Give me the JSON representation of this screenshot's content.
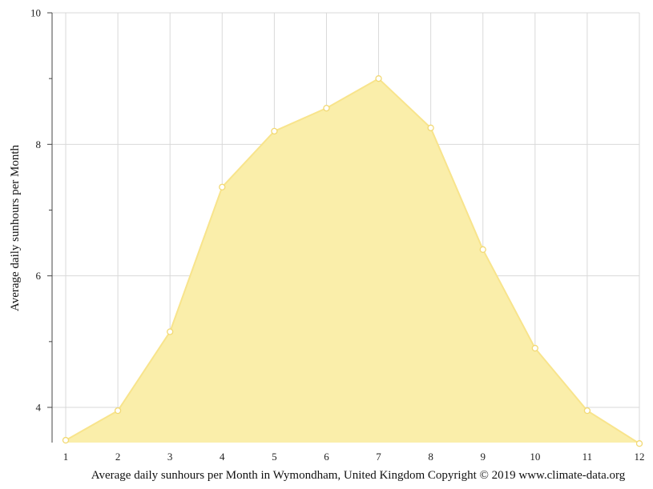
{
  "chart_data": {
    "type": "area",
    "x": [
      1,
      2,
      3,
      4,
      5,
      6,
      7,
      8,
      9,
      10,
      11,
      12
    ],
    "series": [
      {
        "values": [
          3.5,
          3.95,
          5.15,
          7.35,
          8.2,
          8.55,
          9.0,
          8.25,
          6.4,
          4.9,
          3.95,
          3.45
        ]
      }
    ],
    "x_tick_labels": [
      "1",
      "2",
      "3",
      "4",
      "5",
      "6",
      "7",
      "8",
      "9",
      "10",
      "11",
      "12"
    ],
    "y_tick_labels": [
      "4",
      "6",
      "8",
      "10"
    ],
    "y_ticks": [
      4,
      6,
      8,
      10
    ],
    "y_minor_ticks": [
      5,
      7,
      9
    ],
    "xlim": [
      1,
      12
    ],
    "ylim": [
      3.45,
      10
    ],
    "ylabel": "Average daily sunhours per Month",
    "xlabel": "Average daily sunhours per Month in Wymondham, United Kingdom Copyright © 2019 www.climate-data.org",
    "grid": true,
    "colors": {
      "fill": "#faeeaa",
      "line": "#f8e48c",
      "marker_stroke": "#f2d974",
      "marker_fill": "#ffffff",
      "grid": "#d9d9d9",
      "axis": "#444444"
    }
  }
}
